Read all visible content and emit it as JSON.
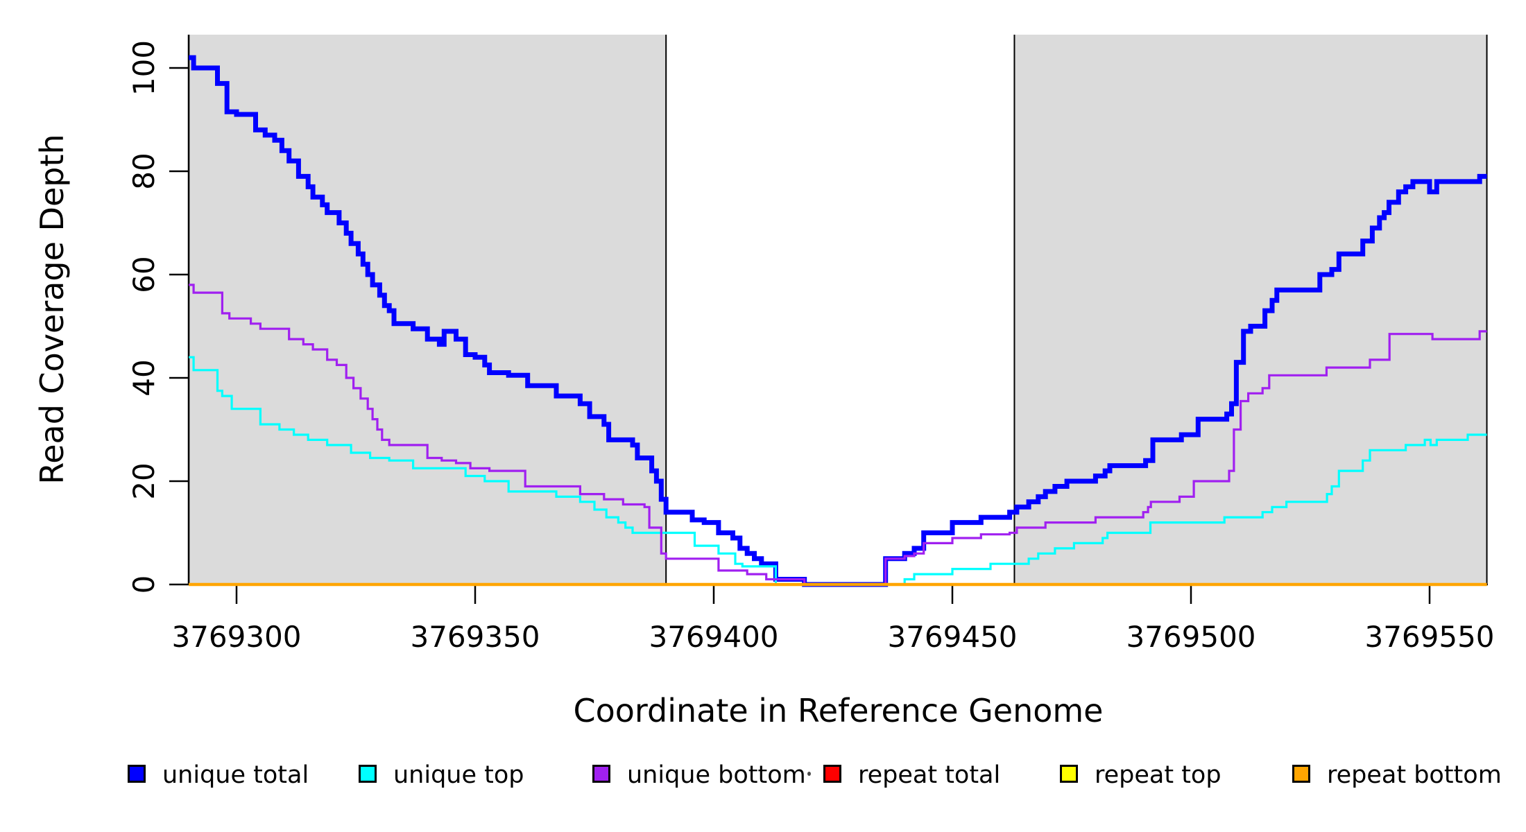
{
  "figure": {
    "background": "#ffffff",
    "plot_bg": "#ffffff",
    "shade_color": "#dbdbdb"
  },
  "chart_data": {
    "type": "line",
    "subtype": "step-after",
    "title": "",
    "xlabel": "Coordinate in Reference Genome",
    "ylabel": "Read Coverage Depth",
    "xlim": [
      3769290,
      3769562
    ],
    "ylim": [
      0,
      106
    ],
    "x_ticks": [
      3769300,
      3769350,
      3769400,
      3769450,
      3769500,
      3769550
    ],
    "y_ticks": [
      0,
      20,
      40,
      60,
      80,
      100
    ],
    "grid": false,
    "legend_position": "bottom",
    "shaded_regions": [
      {
        "name": "left-shaded-region",
        "x0": 3769290,
        "x1": 3769390
      },
      {
        "name": "right-shaded-region",
        "x0": 3769463,
        "x1": 3769562
      }
    ],
    "series": [
      {
        "name": "unique total",
        "color": "#0000ff",
        "width": 7,
        "points": [
          [
            3769290,
            102
          ],
          [
            3769291,
            100
          ],
          [
            3769296,
            97
          ],
          [
            3769298,
            91.5
          ],
          [
            3769300,
            91
          ],
          [
            3769304,
            88
          ],
          [
            3769306,
            87
          ],
          [
            3769308,
            86
          ],
          [
            3769309.5,
            84
          ],
          [
            3769311,
            82
          ],
          [
            3769313,
            79
          ],
          [
            3769315,
            77
          ],
          [
            3769316,
            75
          ],
          [
            3769318,
            73.5
          ],
          [
            3769319,
            72
          ],
          [
            3769321.5,
            70
          ],
          [
            3769323,
            68
          ],
          [
            3769324,
            66
          ],
          [
            3769325.5,
            64
          ],
          [
            3769326.5,
            62
          ],
          [
            3769327.5,
            60
          ],
          [
            3769328.5,
            58
          ],
          [
            3769330,
            56
          ],
          [
            3769331,
            54
          ],
          [
            3769332,
            53
          ],
          [
            3769333,
            50.5
          ],
          [
            3769337,
            49.5
          ],
          [
            3769340,
            47.5
          ],
          [
            3769342.5,
            46.5
          ],
          [
            3769343.5,
            49
          ],
          [
            3769346,
            47.5
          ],
          [
            3769348,
            44.5
          ],
          [
            3769350,
            44
          ],
          [
            3769352,
            42.5
          ],
          [
            3769353,
            41
          ],
          [
            3769357,
            40.5
          ],
          [
            3769361,
            38.5
          ],
          [
            3769367,
            36.5
          ],
          [
            3769372,
            35
          ],
          [
            3769374,
            32.5
          ],
          [
            3769377,
            31
          ],
          [
            3769378,
            28
          ],
          [
            3769383,
            27
          ],
          [
            3769384,
            24.5
          ],
          [
            3769387,
            22
          ],
          [
            3769388,
            20
          ],
          [
            3769389,
            16.5
          ],
          [
            3769390,
            14
          ],
          [
            3769395.5,
            12.5
          ],
          [
            3769398,
            12
          ],
          [
            3769401,
            10
          ],
          [
            3769404,
            9
          ],
          [
            3769405.5,
            7
          ],
          [
            3769407,
            6
          ],
          [
            3769408.5,
            5
          ],
          [
            3769410,
            4
          ],
          [
            3769413,
            1
          ],
          [
            3769419,
            0
          ],
          [
            3769436,
            5
          ],
          [
            3769440,
            6
          ],
          [
            3769442,
            7
          ],
          [
            3769444,
            10
          ],
          [
            3769450,
            12
          ],
          [
            3769456,
            13
          ],
          [
            3769462,
            14
          ],
          [
            3769463.5,
            15
          ],
          [
            3769466,
            16
          ],
          [
            3769468,
            17
          ],
          [
            3769469.5,
            18
          ],
          [
            3769471.5,
            19
          ],
          [
            3769474,
            20
          ],
          [
            3769480,
            21
          ],
          [
            3769482,
            22
          ],
          [
            3769483,
            23
          ],
          [
            3769490.5,
            24
          ],
          [
            3769492,
            28
          ],
          [
            3769498,
            29
          ],
          [
            3769501.5,
            32
          ],
          [
            3769507.5,
            33
          ],
          [
            3769508.5,
            35
          ],
          [
            3769509.5,
            43
          ],
          [
            3769511,
            49
          ],
          [
            3769512.5,
            50
          ],
          [
            3769515.5,
            53
          ],
          [
            3769517,
            55
          ],
          [
            3769518,
            57
          ],
          [
            3769527,
            60
          ],
          [
            3769529.5,
            61
          ],
          [
            3769531,
            64
          ],
          [
            3769536,
            66.5
          ],
          [
            3769538,
            69
          ],
          [
            3769539.5,
            71
          ],
          [
            3769540.5,
            72
          ],
          [
            3769541.5,
            74
          ],
          [
            3769543.5,
            76
          ],
          [
            3769545,
            77
          ],
          [
            3769546.5,
            78
          ],
          [
            3769550,
            76
          ],
          [
            3769551.5,
            78
          ],
          [
            3769560.5,
            79
          ]
        ]
      },
      {
        "name": "unique top",
        "color": "#00ffff",
        "width": 3.2,
        "points": [
          [
            3769290,
            44
          ],
          [
            3769291,
            41.5
          ],
          [
            3769296,
            37.5
          ],
          [
            3769297,
            36.5
          ],
          [
            3769299,
            34
          ],
          [
            3769305,
            31
          ],
          [
            3769309,
            30
          ],
          [
            3769312,
            29
          ],
          [
            3769315,
            28
          ],
          [
            3769319,
            27
          ],
          [
            3769324,
            25.5
          ],
          [
            3769328,
            24.5
          ],
          [
            3769332,
            24
          ],
          [
            3769337,
            22.5
          ],
          [
            3769348,
            21
          ],
          [
            3769352,
            20
          ],
          [
            3769357,
            18
          ],
          [
            3769367,
            17
          ],
          [
            3769372,
            16
          ],
          [
            3769375,
            14.5
          ],
          [
            3769377.5,
            13
          ],
          [
            3769380,
            12
          ],
          [
            3769381.5,
            11
          ],
          [
            3769383,
            10
          ],
          [
            3769396,
            7.5
          ],
          [
            3769401,
            6
          ],
          [
            3769404.5,
            4
          ],
          [
            3769406,
            3.5
          ],
          [
            3769413,
            0
          ],
          [
            3769440,
            1
          ],
          [
            3769442,
            2
          ],
          [
            3769450,
            3
          ],
          [
            3769458,
            4
          ],
          [
            3769466,
            5
          ],
          [
            3769468,
            6
          ],
          [
            3769471.5,
            7
          ],
          [
            3769475.5,
            8
          ],
          [
            3769481.5,
            9
          ],
          [
            3769482.5,
            10
          ],
          [
            3769491.5,
            12
          ],
          [
            3769507,
            13
          ],
          [
            3769515,
            14
          ],
          [
            3769517,
            15
          ],
          [
            3769520,
            16
          ],
          [
            3769528.5,
            17.5
          ],
          [
            3769529.5,
            19
          ],
          [
            3769531,
            22
          ],
          [
            3769536,
            24
          ],
          [
            3769537.5,
            26
          ],
          [
            3769545,
            27
          ],
          [
            3769549,
            28
          ],
          [
            3769550.2,
            27
          ],
          [
            3769551.5,
            28
          ],
          [
            3769558,
            29
          ]
        ]
      },
      {
        "name": "unique bottom",
        "color": "#a020f0",
        "width": 3.2,
        "points": [
          [
            3769290,
            58
          ],
          [
            3769291,
            56.5
          ],
          [
            3769297,
            52.5
          ],
          [
            3769298.5,
            51.5
          ],
          [
            3769303,
            50.5
          ],
          [
            3769305,
            49.5
          ],
          [
            3769311,
            47.5
          ],
          [
            3769314,
            46.5
          ],
          [
            3769316,
            45.5
          ],
          [
            3769319,
            43.5
          ],
          [
            3769321,
            42.5
          ],
          [
            3769323,
            40
          ],
          [
            3769324.5,
            38
          ],
          [
            3769326,
            36
          ],
          [
            3769327.5,
            34
          ],
          [
            3769328.5,
            32
          ],
          [
            3769329.5,
            30
          ],
          [
            3769330.5,
            28
          ],
          [
            3769332,
            27
          ],
          [
            3769340,
            24.5
          ],
          [
            3769343,
            24
          ],
          [
            3769346,
            23.5
          ],
          [
            3769349,
            22.5
          ],
          [
            3769353,
            22
          ],
          [
            3769360.5,
            19
          ],
          [
            3769372,
            17.5
          ],
          [
            3769377,
            16.5
          ],
          [
            3769381,
            15.5
          ],
          [
            3769385.5,
            15
          ],
          [
            3769386.5,
            11
          ],
          [
            3769389,
            6
          ],
          [
            3769390,
            5
          ],
          [
            3769401,
            2.7
          ],
          [
            3769407,
            2
          ],
          [
            3769411,
            1
          ],
          [
            3769419,
            0
          ],
          [
            3769436,
            5
          ],
          [
            3769440,
            5.5
          ],
          [
            3769442,
            6
          ],
          [
            3769444,
            8
          ],
          [
            3769450,
            9
          ],
          [
            3769456,
            9.7
          ],
          [
            3769462,
            10
          ],
          [
            3769463.5,
            11
          ],
          [
            3769469.5,
            12
          ],
          [
            3769480,
            13
          ],
          [
            3769490,
            14
          ],
          [
            3769491,
            15
          ],
          [
            3769491.6,
            16
          ],
          [
            3769497.6,
            17
          ],
          [
            3769500.6,
            20
          ],
          [
            3769508,
            22
          ],
          [
            3769509,
            30
          ],
          [
            3769510.4,
            35.5
          ],
          [
            3769512,
            37
          ],
          [
            3769515,
            38
          ],
          [
            3769516.4,
            40.5
          ],
          [
            3769528.4,
            42
          ],
          [
            3769537.5,
            43.5
          ],
          [
            3769541.6,
            48.5
          ],
          [
            3769550.6,
            47.5
          ],
          [
            3769560.5,
            49
          ]
        ]
      },
      {
        "name": "repeat total",
        "color": "#ff0000",
        "width": 3,
        "points": [
          [
            3769290,
            0
          ]
        ]
      },
      {
        "name": "repeat top",
        "color": "#ffff00",
        "width": 3,
        "points": [
          [
            3769290,
            0
          ]
        ]
      },
      {
        "name": "repeat bottom",
        "color": "#ffa500",
        "width": 4.5,
        "points": [
          [
            3769290,
            0
          ]
        ]
      }
    ],
    "legend": [
      {
        "label": "unique total",
        "color": "#0000ff"
      },
      {
        "label": "unique top",
        "color": "#00ffff"
      },
      {
        "label": "unique bottom",
        "color": "#a020f0"
      },
      {
        "label": "repeat total",
        "color": "#ff0000"
      },
      {
        "label": "repeat top",
        "color": "#ffff00"
      },
      {
        "label": "repeat bottom",
        "color": "#ffa500"
      }
    ]
  }
}
